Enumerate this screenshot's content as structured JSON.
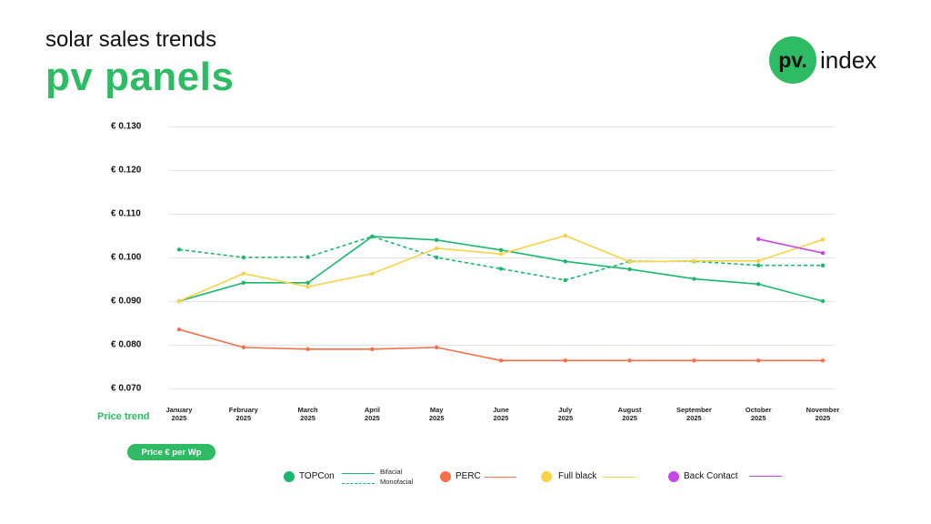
{
  "header": {
    "subtitle": "solar sales trends",
    "title": "pv panels"
  },
  "logo": {
    "badge": "pv.",
    "text": "index",
    "color": "#2dbb63"
  },
  "labels": {
    "price_trend": "Price trend",
    "unit_pill": "Price € per Wp"
  },
  "legend": {
    "topcon": "TOPCon",
    "bifacial": "Bifacial",
    "monofacial": "Monofacial",
    "perc": "PERC",
    "full_black": "Full black",
    "back_contact": "Back Contact"
  },
  "colors": {
    "topcon": "#19b86a",
    "perc": "#f2714a",
    "full_black": "#f7d348",
    "back_contact": "#c547e8"
  },
  "chart_data": {
    "type": "line",
    "ylim": [
      0.07,
      0.13
    ],
    "y_ticks": [
      "€ 0.130",
      "€ 0.120",
      "€ 0.110",
      "€ 0.100",
      "€ 0.090",
      "€ 0.080",
      "€ 0.070"
    ],
    "categories": [
      [
        "January",
        "2025"
      ],
      [
        "February",
        "2025"
      ],
      [
        "March",
        "2025"
      ],
      [
        "April",
        "2025"
      ],
      [
        "May",
        "2025"
      ],
      [
        "June",
        "2025"
      ],
      [
        "July",
        "2025"
      ],
      [
        "August",
        "2025"
      ],
      [
        "September",
        "2025"
      ],
      [
        "October",
        "2025"
      ],
      [
        "November",
        "2025"
      ]
    ],
    "grid": true,
    "series": [
      {
        "name": "TOPCon Bifacial",
        "color": "#19b86a",
        "dashed": false,
        "values": [
          0.09,
          0.0942,
          0.0942,
          0.1048,
          0.104,
          0.1017,
          0.0991,
          0.0973,
          0.0951,
          0.0939,
          0.09
        ]
      },
      {
        "name": "TOPCon Monofacial",
        "color": "#19b86a",
        "dashed": true,
        "values": [
          0.1018,
          0.1,
          0.1001,
          0.1048,
          0.1,
          0.0974,
          0.0948,
          0.0991,
          0.0991,
          0.0982,
          0.0982
        ]
      },
      {
        "name": "PERC",
        "color": "#f2714a",
        "dashed": false,
        "values": [
          0.0835,
          0.0794,
          0.079,
          0.079,
          0.0794,
          0.0764,
          0.0764,
          0.0764,
          0.0764,
          0.0764,
          0.0764
        ]
      },
      {
        "name": "Full black",
        "color": "#f7d348",
        "dashed": false,
        "values": [
          0.09,
          0.0963,
          0.0933,
          0.0963,
          0.1021,
          0.1008,
          0.105,
          0.099,
          0.0992,
          0.0992,
          0.1041
        ]
      },
      {
        "name": "Back Contact",
        "color": "#c547e8",
        "dashed": false,
        "values": [
          null,
          null,
          null,
          null,
          null,
          null,
          null,
          null,
          null,
          0.1042,
          0.101
        ]
      }
    ]
  }
}
